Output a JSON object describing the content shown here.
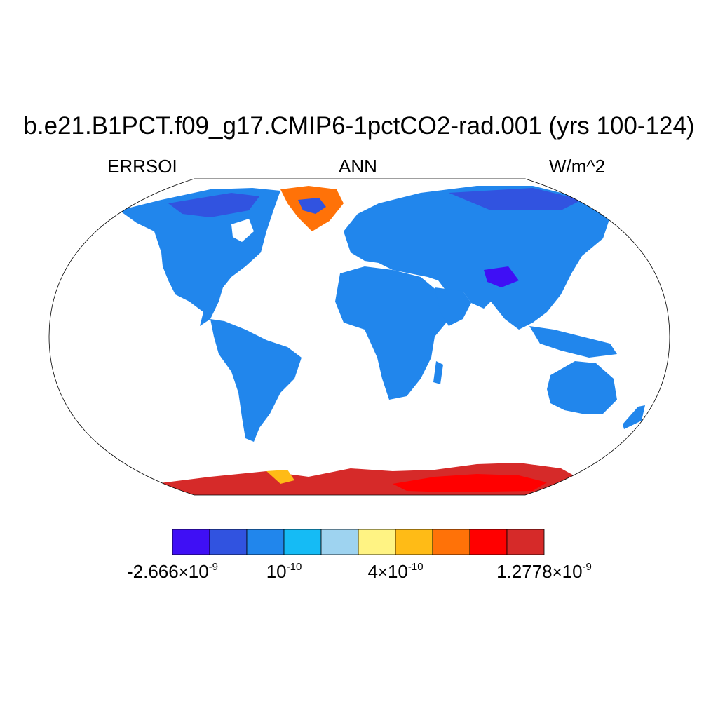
{
  "title": "b.e21.B1PCT.f09_g17.CMIP6-1pctCO2-rad.001 (yrs 100-124)",
  "left_label": "ERRSOI",
  "center_label": "ANN",
  "right_label": "W/m^2",
  "colorbar": {
    "colors": [
      "#3f0ff5",
      "#3153e0",
      "#2186ec",
      "#15bbf5",
      "#9ed3f0",
      "#fff383",
      "#ffbb16",
      "#ff7208",
      "#ff0000",
      "#d62a29"
    ],
    "tick_labels": [
      {
        "mantissa": "-2.666",
        "exponent": "-9"
      },
      {
        "mantissa": "",
        "exponent": "-10"
      },
      {
        "mantissa": "4",
        "exponent": "-10"
      },
      {
        "mantissa": "1.2778",
        "exponent": "-9"
      }
    ]
  },
  "land_colors": {
    "default": "#2186ec",
    "low": "#3153e0",
    "very_low": "#3f0ff5",
    "light": "#15bbf5",
    "pale": "#9ed3f0",
    "greenland_edge": "#ff7208",
    "greenland_core": "#3153e0",
    "antarctica": "#d62a29",
    "antarctica_inner": "#ff0000",
    "antarctica_coast": "#ffbb16"
  }
}
